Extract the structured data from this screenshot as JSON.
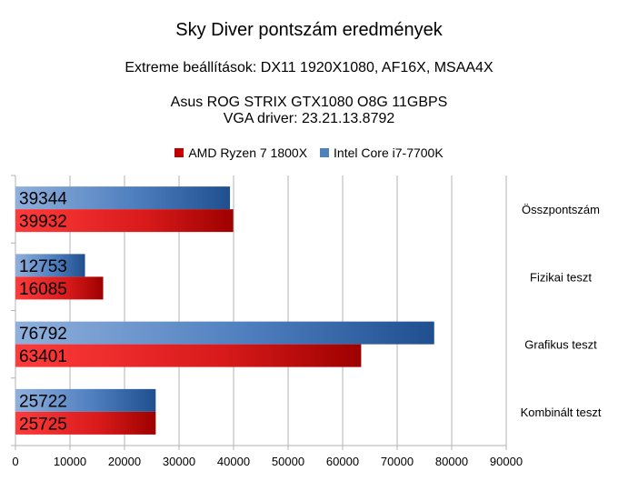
{
  "chart_data": {
    "type": "bar",
    "orientation": "horizontal",
    "title": "Sky Diver pontszám eredmények",
    "subtitle_lines": [
      "Extreme beállítások: DX11 1920X1080, AF16X, MSAA4X",
      "Asus ROG STRIX GTX1080 O8G 11GBPS",
      "VGA driver: 23.21.13.8792"
    ],
    "categories": [
      "Összpontszám",
      "Fizikai teszt",
      "Grafikus teszt",
      "Kombinált teszt"
    ],
    "series": [
      {
        "name": "Intel Core i7-7700K",
        "values": [
          39344,
          12753,
          76792,
          25722
        ],
        "color": "#4f81bd"
      },
      {
        "name": "AMD Ryzen 7 1800X",
        "values": [
          39932,
          16085,
          63401,
          25725
        ],
        "color": "#c00000"
      }
    ],
    "legend_order": [
      "AMD Ryzen 7 1800X",
      "Intel Core i7-7700K"
    ],
    "legend_position": "top",
    "xlim": [
      0,
      90000
    ],
    "x_ticks": [
      "0",
      "10000",
      "20000",
      "30000",
      "40000",
      "50000",
      "60000",
      "70000",
      "80000",
      "90000"
    ],
    "grid": true
  }
}
